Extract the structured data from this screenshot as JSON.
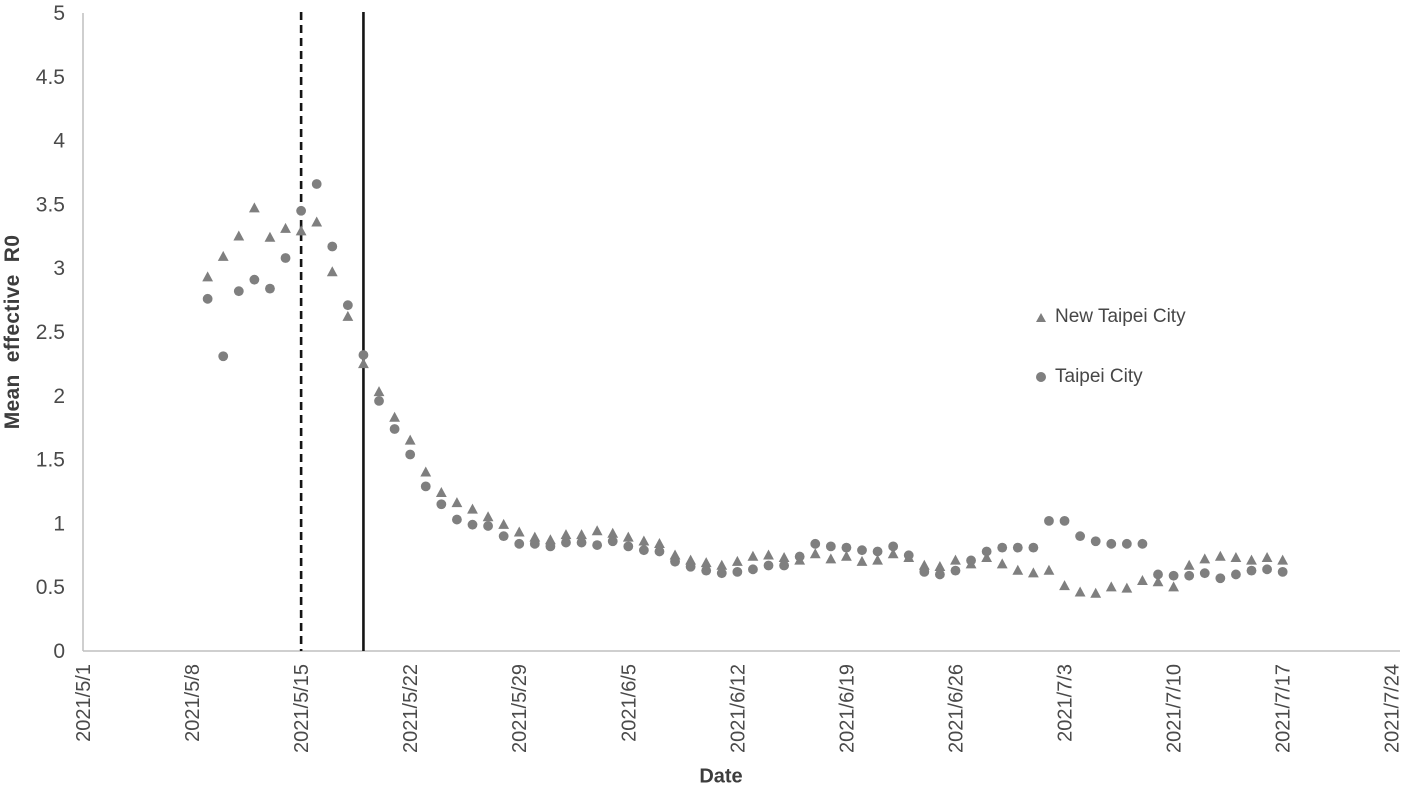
{
  "chart_data": {
    "type": "scatter",
    "title": "",
    "xlabel": "Date",
    "ylabel": "Mean effective R0",
    "ylim": [
      0,
      5
    ],
    "grid": false,
    "legend_position": "middle-right",
    "x_tick_labels": [
      "2021/5/1",
      "2021/5/8",
      "2021/5/15",
      "2021/5/22",
      "2021/5/29",
      "2021/6/5",
      "2021/6/12",
      "2021/6/19",
      "2021/6/26",
      "2021/7/3",
      "2021/7/10",
      "2021/7/17",
      "2021/7/24"
    ],
    "y_tick_labels": [
      "0",
      "0.5",
      "1",
      "1.5",
      "2",
      "2.5",
      "3",
      "3.5",
      "4",
      "4.5",
      "5"
    ],
    "x": [
      "2021/5/9",
      "2021/5/10",
      "2021/5/11",
      "2021/5/12",
      "2021/5/13",
      "2021/5/14",
      "2021/5/15",
      "2021/5/16",
      "2021/5/17",
      "2021/5/18",
      "2021/5/19",
      "2021/5/20",
      "2021/5/21",
      "2021/5/22",
      "2021/5/23",
      "2021/5/24",
      "2021/5/25",
      "2021/5/26",
      "2021/5/27",
      "2021/5/28",
      "2021/5/29",
      "2021/5/30",
      "2021/5/31",
      "2021/6/1",
      "2021/6/2",
      "2021/6/3",
      "2021/6/4",
      "2021/6/5",
      "2021/6/6",
      "2021/6/7",
      "2021/6/8",
      "2021/6/9",
      "2021/6/10",
      "2021/6/11",
      "2021/6/12",
      "2021/6/13",
      "2021/6/14",
      "2021/6/15",
      "2021/6/16",
      "2021/6/17",
      "2021/6/18",
      "2021/6/19",
      "2021/6/20",
      "2021/6/21",
      "2021/6/22",
      "2021/6/23",
      "2021/6/24",
      "2021/6/25",
      "2021/6/26",
      "2021/6/27",
      "2021/6/28",
      "2021/6/29",
      "2021/6/30",
      "2021/7/1",
      "2021/7/2",
      "2021/7/3",
      "2021/7/4",
      "2021/7/5",
      "2021/7/6",
      "2021/7/7",
      "2021/7/8",
      "2021/7/9",
      "2021/7/10",
      "2021/7/11",
      "2021/7/12",
      "2021/7/13",
      "2021/7/14",
      "2021/7/15",
      "2021/7/16",
      "2021/7/17"
    ],
    "series": [
      {
        "name": "New Taipei City",
        "marker": "triangle",
        "values": [
          2.93,
          3.09,
          3.25,
          3.47,
          3.24,
          3.31,
          3.29,
          3.36,
          2.97,
          2.62,
          2.25,
          2.03,
          1.83,
          1.65,
          1.4,
          1.24,
          1.16,
          1.11,
          1.05,
          0.99,
          0.93,
          0.89,
          0.87,
          0.91,
          0.91,
          0.94,
          0.92,
          0.89,
          0.86,
          0.84,
          0.75,
          0.71,
          0.69,
          0.67,
          0.7,
          0.74,
          0.75,
          0.73,
          0.71,
          0.76,
          0.72,
          0.74,
          0.7,
          0.71,
          0.76,
          0.73,
          0.67,
          0.66,
          0.71,
          0.68,
          0.73,
          0.68,
          0.63,
          0.61,
          0.63,
          0.51,
          0.46,
          0.45,
          0.5,
          0.49,
          0.55,
          0.54,
          0.5,
          0.67,
          0.72,
          0.74,
          0.73,
          0.71,
          0.73,
          0.71
        ]
      },
      {
        "name": "Taipei City",
        "marker": "circle",
        "values": [
          2.76,
          2.31,
          2.82,
          2.91,
          2.84,
          3.08,
          3.45,
          3.66,
          3.17,
          2.71,
          2.32,
          1.96,
          1.74,
          1.54,
          1.29,
          1.15,
          1.03,
          0.99,
          0.98,
          0.9,
          0.84,
          0.84,
          0.82,
          0.85,
          0.85,
          0.83,
          0.86,
          0.82,
          0.79,
          0.78,
          0.7,
          0.66,
          0.63,
          0.61,
          0.62,
          0.64,
          0.67,
          0.67,
          0.74,
          0.84,
          0.82,
          0.81,
          0.79,
          0.78,
          0.82,
          0.75,
          0.62,
          0.6,
          0.63,
          0.71,
          0.78,
          0.81,
          0.81,
          0.81,
          1.02,
          1.02,
          0.9,
          0.86,
          0.84,
          0.84,
          0.84,
          0.6,
          0.59,
          0.59,
          0.61,
          0.57,
          0.6,
          0.63,
          0.64,
          0.62
        ]
      }
    ],
    "vlines": [
      {
        "x": "2021/5/15",
        "style": "dashed"
      },
      {
        "x": "2021/5/19",
        "style": "solid"
      }
    ]
  },
  "style": {
    "marker_color": "#7f7f7f",
    "axis_line_color": "#bfbfbf",
    "tick_label_color": "#4a4a4a",
    "vline_color": "#141414",
    "background": "#ffffff"
  }
}
